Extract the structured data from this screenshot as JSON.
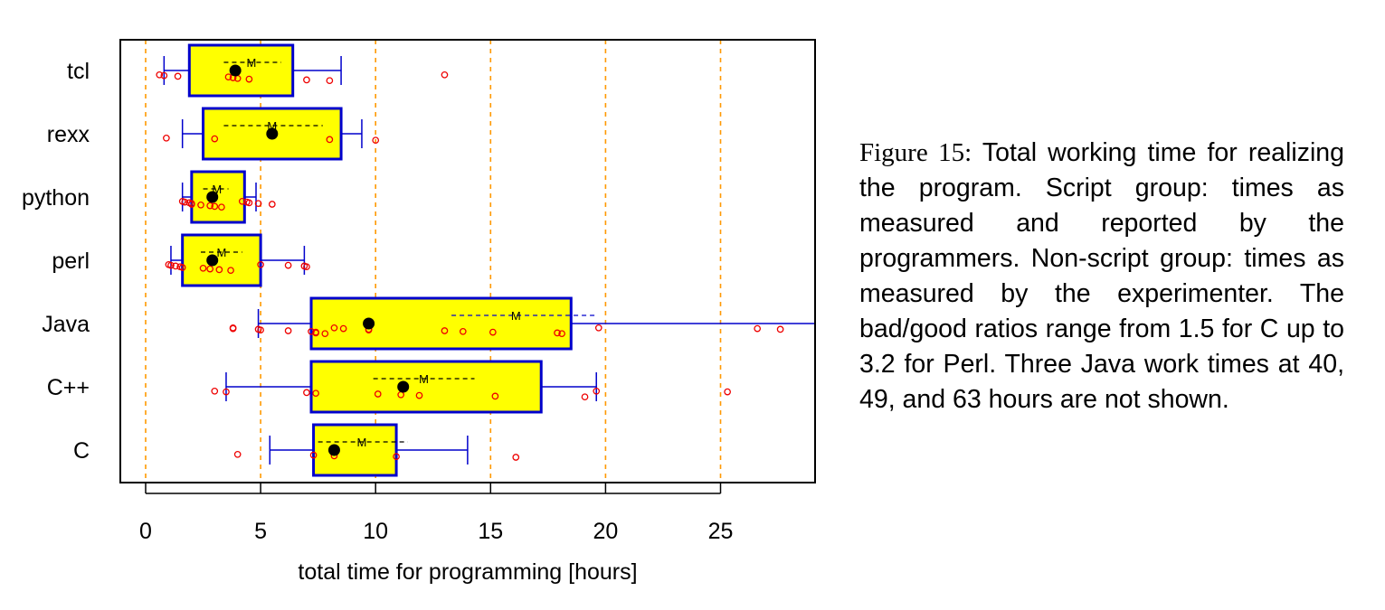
{
  "chart_data": {
    "type": "boxplot",
    "xlabel": "total time for programming [hours]",
    "xlim": [
      -1.1,
      29.1
    ],
    "xticks": [
      0,
      5,
      10,
      15,
      20,
      25
    ],
    "grid": "vertical dashed orange at x ticks",
    "colors": {
      "box_fill": "#ffff00",
      "box_edge": "#0000cc",
      "points": "#ee0000",
      "grid": "#ff9900",
      "mean_dot": "#000000"
    },
    "groups": [
      {
        "name": "tcl",
        "whisker_low": 0.8,
        "q1": 1.9,
        "median": 3.9,
        "q3": 6.4,
        "whisker_high": 8.5,
        "mean": 4.6,
        "mean_ci": [
          3.4,
          5.9
        ],
        "points": [
          0.6,
          0.8,
          1.4,
          3.6,
          3.8,
          4.0,
          4.5,
          7.0,
          8.0,
          13.0
        ]
      },
      {
        "name": "rexx",
        "whisker_low": 1.6,
        "q1": 2.5,
        "median": 5.5,
        "q3": 8.5,
        "whisker_high": 9.4,
        "mean": 5.5,
        "mean_ci": [
          3.4,
          7.7
        ],
        "points": [
          0.9,
          3.0,
          8.0,
          10.0
        ]
      },
      {
        "name": "python",
        "whisker_low": 1.6,
        "q1": 2.0,
        "median": 2.9,
        "q3": 4.3,
        "whisker_high": 4.8,
        "mean": 3.1,
        "mean_ci": [
          2.5,
          3.6
        ],
        "points": [
          1.6,
          1.7,
          1.9,
          2.0,
          2.0,
          2.4,
          2.8,
          3.0,
          3.3,
          4.2,
          4.4,
          4.5,
          4.9,
          5.5
        ]
      },
      {
        "name": "perl",
        "whisker_low": 1.1,
        "q1": 1.6,
        "median": 2.9,
        "q3": 5.0,
        "whisker_high": 6.9,
        "mean": 3.3,
        "mean_ci": [
          2.4,
          4.2
        ],
        "points": [
          1.0,
          1.1,
          1.3,
          1.5,
          1.6,
          2.5,
          2.8,
          3.2,
          3.7,
          5.0,
          6.2,
          6.9,
          7.0
        ]
      },
      {
        "name": "Java",
        "whisker_low": 4.9,
        "q1": 7.2,
        "median": 9.7,
        "q3": 18.5,
        "whisker_high": 29.5,
        "mean": 16.1,
        "mean_ci": [
          13.3,
          19.6
        ],
        "points": [
          3.8,
          3.8,
          4.9,
          5.0,
          6.2,
          7.2,
          7.4,
          7.4,
          7.8,
          8.2,
          8.6,
          9.7,
          9.7,
          13.0,
          13.8,
          15.1,
          17.9,
          18.1,
          19.7,
          26.6,
          27.6
        ]
      },
      {
        "name": "C++",
        "whisker_low": 3.5,
        "q1": 7.2,
        "median": 11.2,
        "q3": 17.2,
        "whisker_high": 19.6,
        "mean": 12.1,
        "mean_ci": [
          9.9,
          14.3
        ],
        "points": [
          3.0,
          3.5,
          7.0,
          7.4,
          10.1,
          11.1,
          11.9,
          15.2,
          19.1,
          19.6,
          25.3
        ]
      },
      {
        "name": "C",
        "whisker_low": 5.4,
        "q1": 7.3,
        "median": 8.2,
        "q3": 10.9,
        "whisker_high": 14.0,
        "mean": 9.4,
        "mean_ci": [
          7.5,
          11.4
        ],
        "points": [
          4.0,
          7.3,
          8.2,
          10.9,
          16.1
        ]
      }
    ]
  },
  "caption": {
    "label": "Figure 15:",
    "text": "Total working time for realizing the program. Script group: times as measured and reported by the programmers. Non-script group: times as measured by the experimenter. The bad/good ratios range from 1.5 for C up to 3.2 for Perl. Three Java work times at 40, 49, and 63 hours are not shown."
  }
}
